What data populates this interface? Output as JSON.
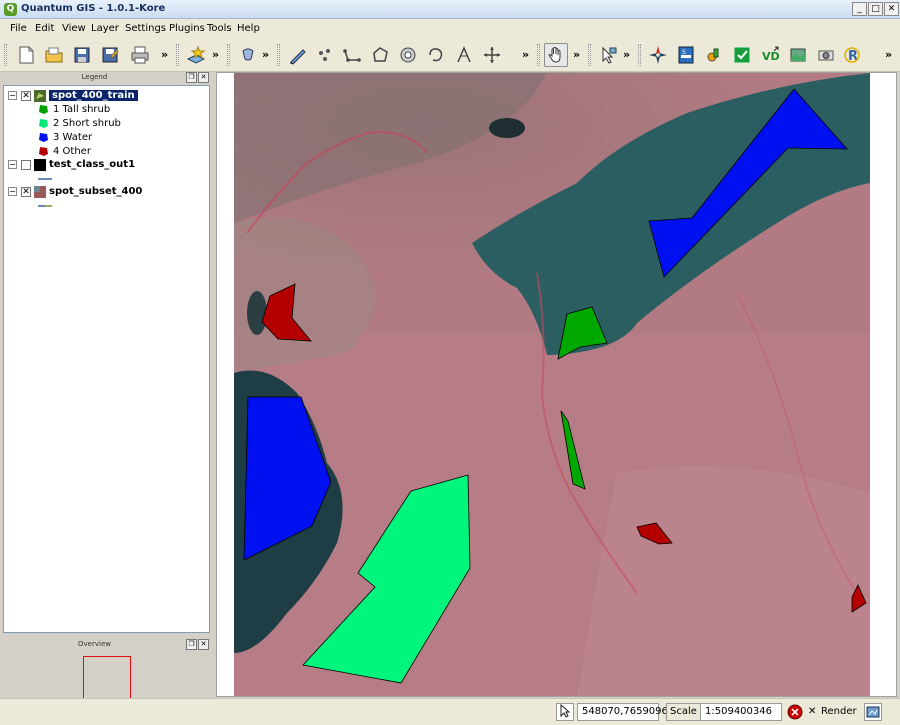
{
  "window": {
    "title": "Quantum GIS - 1.0.1-Kore",
    "app_icon": "qgis-logo-icon",
    "controls": [
      "_",
      "□",
      "✕"
    ]
  },
  "menu": [
    "File",
    "Edit",
    "View",
    "Layer",
    "Settings",
    "Plugins",
    "Tools",
    "Help"
  ],
  "toolbar": {
    "overflow_glyph": "»",
    "tools": [
      "new-project-icon",
      "open-project-icon",
      "save-project-icon",
      "save-as-icon",
      "print-icon",
      "add-layer-icon",
      "identify-icon",
      "digitize-icon",
      "capture-point-icon",
      "capture-line-icon",
      "capture-polygon-icon",
      "move-feature-icon",
      "node-tool-icon",
      "split-icon",
      "pan-icon",
      "select-icon",
      "north-arrow-icon",
      "scalebar-icon",
      "plugin-icon",
      "grass-icon",
      "copyright-icon",
      "overview-icon",
      "python-icon"
    ]
  },
  "legend": {
    "title": "Legend",
    "layers": [
      {
        "name": "spot_400_train",
        "checked": "✕",
        "expander": "−",
        "selected": true,
        "classes": [
          {
            "label": "1 Tall shrub",
            "color": "#00a000"
          },
          {
            "label": "2 Short shrub",
            "color": "#00e87a"
          },
          {
            "label": "3 Water",
            "color": "#0010f0"
          },
          {
            "label": "4 Other",
            "color": "#b00000"
          }
        ]
      },
      {
        "name": "test_class_out1",
        "checked": "",
        "expander": "−"
      },
      {
        "name": "spot_subset_400",
        "checked": "✕",
        "expander": "−"
      }
    ]
  },
  "overview": {
    "title": "Overview"
  },
  "map": {
    "polygons": [
      {
        "class": "water",
        "color": "#0010f0"
      },
      {
        "class": "water",
        "color": "#0010f0"
      },
      {
        "class": "short-shrub",
        "color": "#00f57c"
      },
      {
        "class": "tall-shrub",
        "color": "#00a800"
      },
      {
        "class": "tall-shrub",
        "color": "#00a800"
      },
      {
        "class": "other",
        "color": "#b40000"
      },
      {
        "class": "other",
        "color": "#b40000"
      },
      {
        "class": "other",
        "color": "#b40000"
      }
    ]
  },
  "status": {
    "coordinates": "548070,7659096",
    "scale_label": "Scale",
    "scale_value": "1:509400346",
    "render_label": "Render",
    "render_checked": "✕"
  }
}
